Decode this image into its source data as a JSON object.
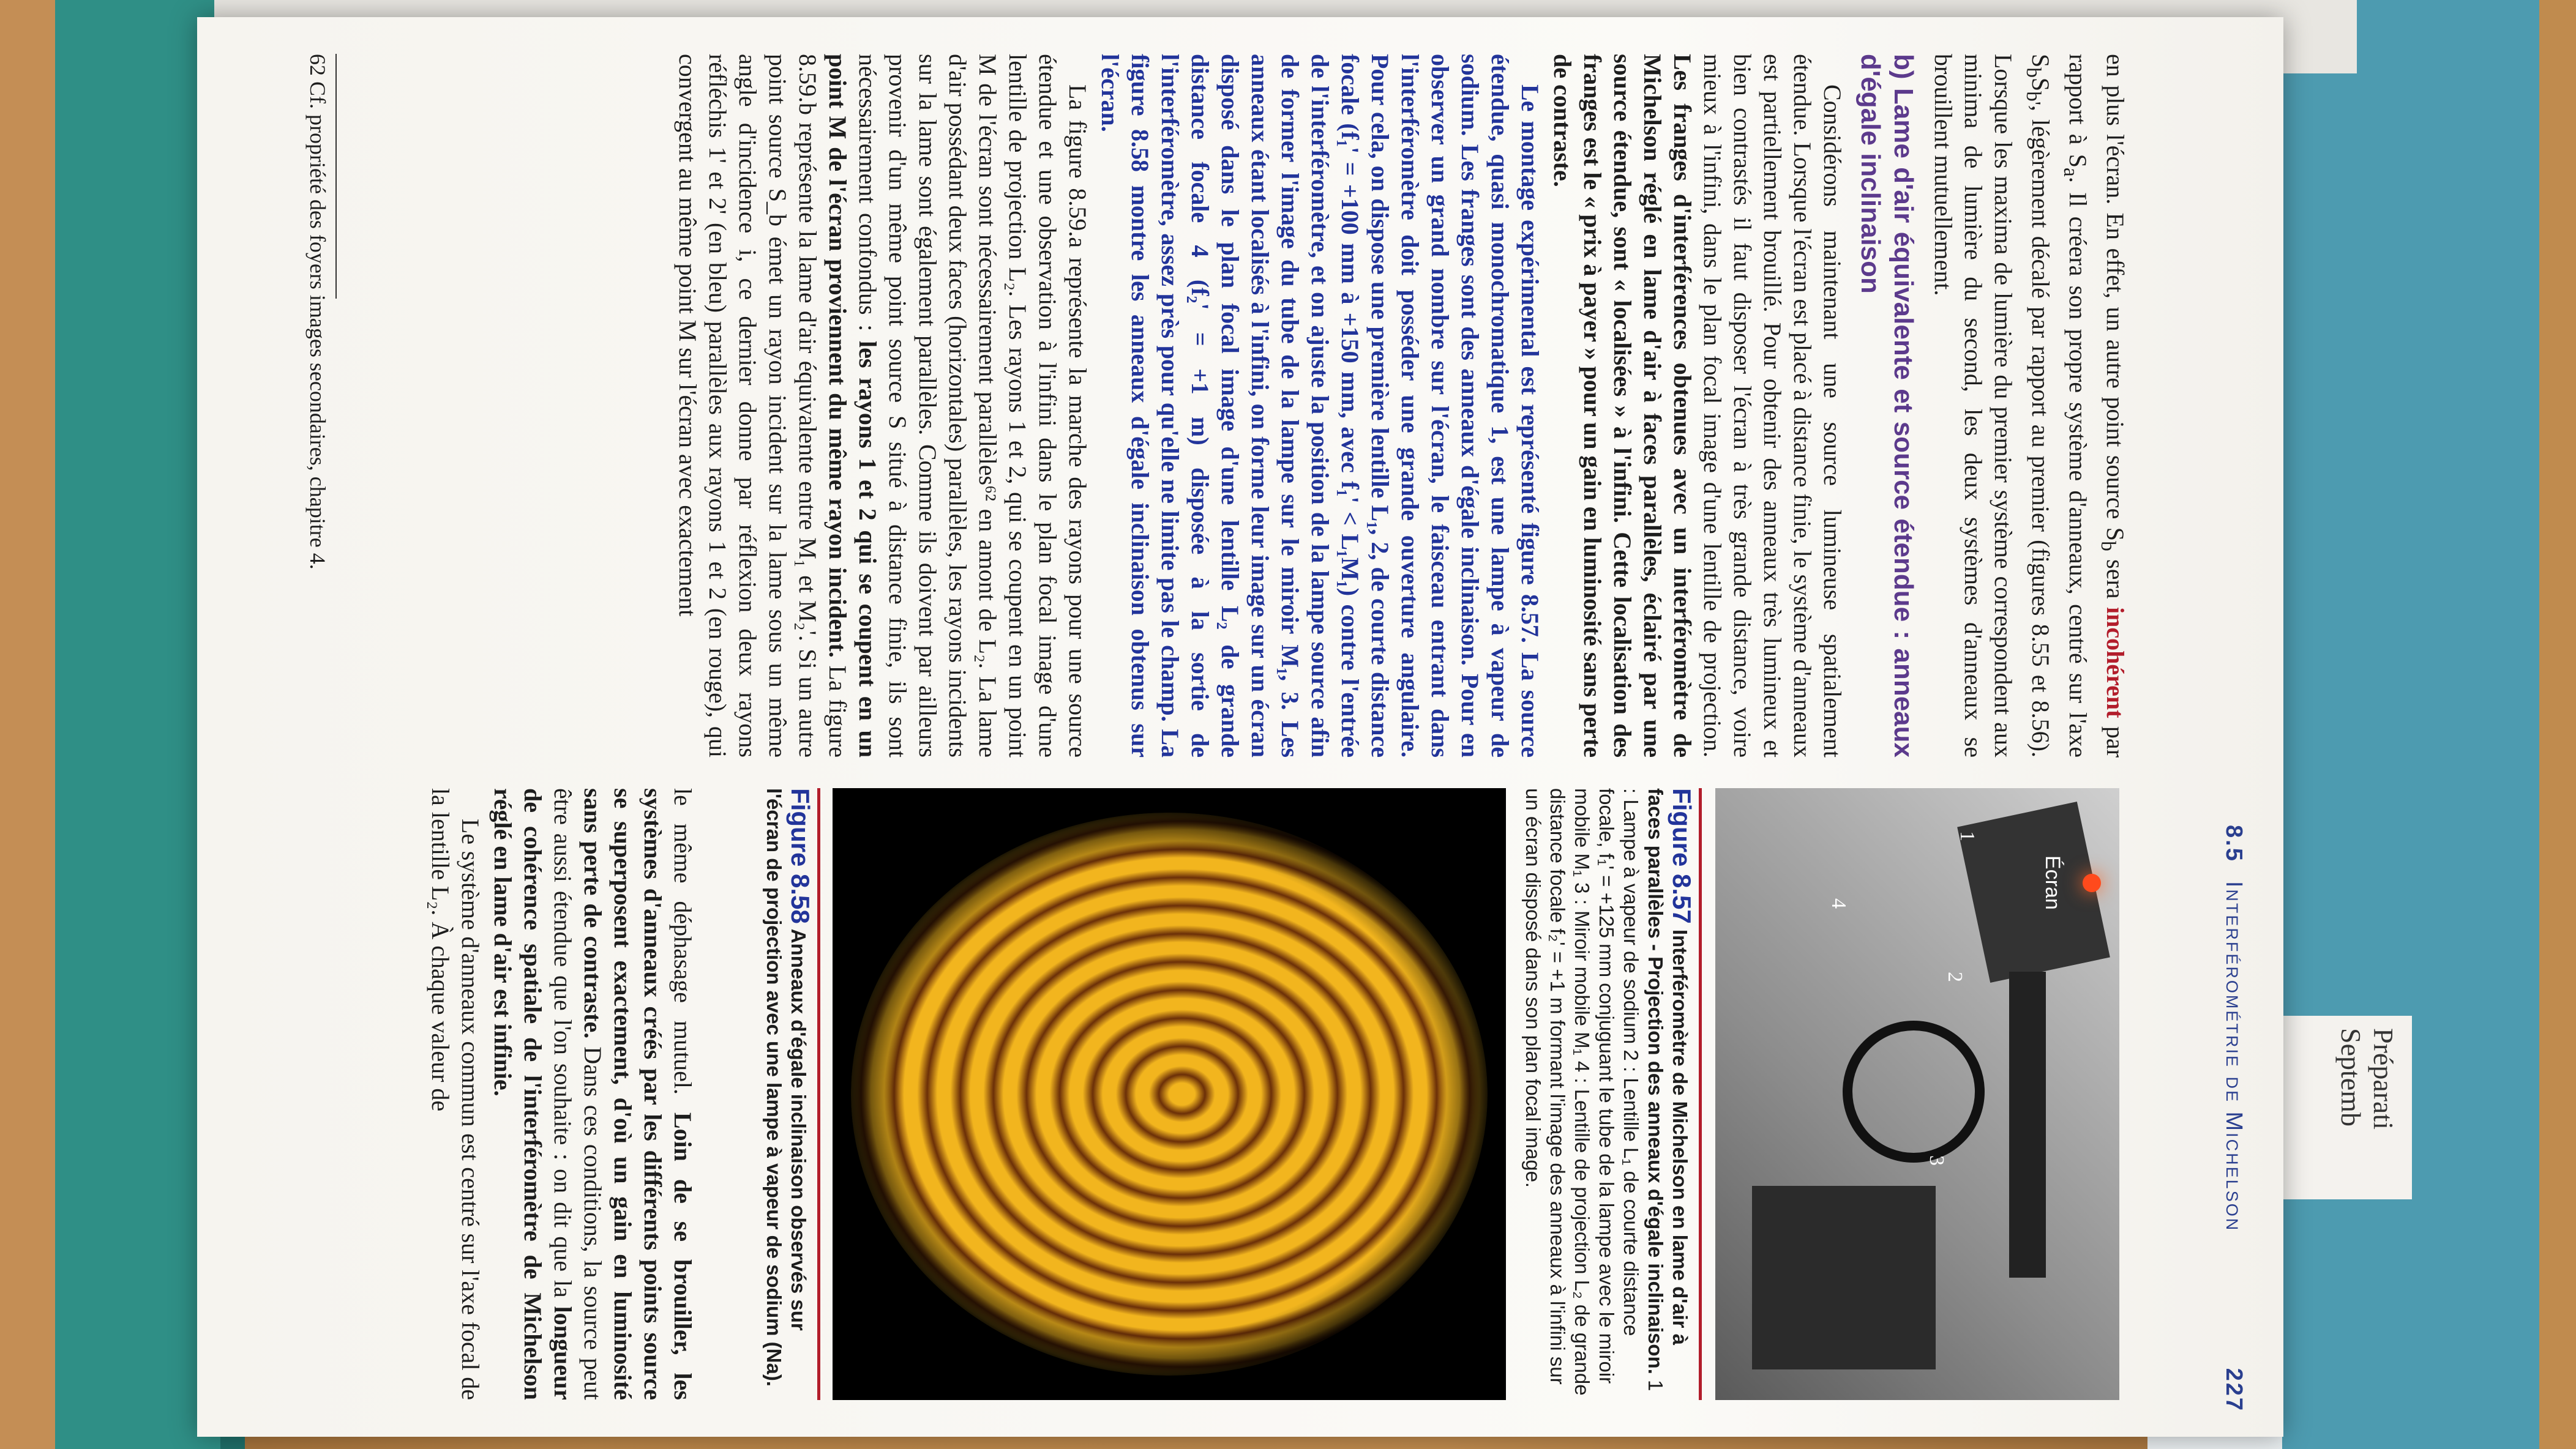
{
  "header": {
    "section": "8.5",
    "title": "Interférométrie de Michelson",
    "page": "227"
  },
  "left_column": {
    "intro": [
      "en plus l'écran. En effet, un autre point source S",
      "b",
      " sera ",
      "incohérent",
      " par rapport à S",
      "a",
      ". Il créera son propre système d'anneaux, centré sur l'axe S",
      "b",
      "S",
      "b'",
      ", légèrement décalé par rapport au premier (figures 8.55 et 8.56). Lorsque les maxima de lumière du premier système correspondent aux minima de lumière du second, les deux systèmes d'anneaux se brouillent mutuellement."
    ],
    "heading": "b) Lame d'air équivalente et source étendue : anneaux d'égale inclinaison",
    "paragraph_1": [
      "Considérons maintenant une source lumineuse spatialement étendue. Lorsque l'écran est placé à distance finie, le système d'anneaux est partiellement brouillé. Pour obtenir des anneaux très lumineux et bien contrastés il faut disposer l'écran à très grande distance, voire mieux à l'infini, dans le plan focal image d'une lentille de projection. ",
      "Les franges d'interférences obtenues avec un interféromètre de Michelson réglé en lame d'air à faces parallèles, éclairé par une source étendue, sont « localisées » à l'infini. Cette localisation des franges est le « prix à payer » pour un gain en luminosité sans perte de contraste."
    ],
    "paragraph_2": "Le montage expérimental est représenté figure 8.57. La source étendue, quasi monochromatique 1, est une lampe à vapeur de sodium. Les franges sont des anneaux d'égale inclinaison. Pour en observer un grand nombre sur l'écran, le faisceau entrant dans l'interféromètre doit posséder une grande ouverture angulaire. Pour cela, on dispose une première lentille L₁, 2, de courte distance focale (f₁' = +100 mm à +150 mm, avec f₁' < L₁M₁) contre l'entrée de l'interféromètre, et on ajuste la position de la lampe source afin de former l'image du tube de la lampe sur le miroir M₁, 3. Les anneaux étant localisés à l'infini, on forme leur image sur un écran disposé dans le plan focal image d'une lentille L₂ de grande distance focale 4 (f₂' = +1 m) disposée à la sortie de l'interféromètre, assez près pour qu'elle ne limite pas le champ. La figure 8.58 montre les anneaux d'égale inclinaison obtenus sur l'écran.",
    "paragraph_3": [
      "La figure 8.59.a représente la marche des rayons pour une source étendue et une observation à l'infini dans le plan focal image d'une lentille de projection L₂. Les rayons 1 et 2, qui se coupent en un point M de l'écran sont nécessairement parallèles⁶² en amont de L₂. La lame d'air possédant deux faces (horizontales) parallèles, les rayons incidents sur la lame sont également parallèles. Comme ils doivent par ailleurs provenir d'un même point source S situé à distance finie, ils sont nécessairement confondus : ",
      "les rayons 1 et 2 qui se coupent en un point M de l'écran proviennent du même rayon incident.",
      " La figure 8.59.b représente la lame d'air équivalente entre M₁ et M₂'. Si un autre point source S_b émet un rayon incident sur la lame sous un même angle d'incidence i, ce dernier donne par réflexion deux rayons réfléchis 1' et 2' (en bleu) parallèles aux rayons 1 et 2 (en rouge), qui convergent au même point M sur l'écran avec exactement"
    ],
    "footnote": "62 Cf. propriété des foyers images secondaires, chapitre 4."
  },
  "figure_57": {
    "photo_labels": [
      "Écran",
      "1",
      "2",
      "3",
      "4"
    ],
    "label": "Figure 8.57",
    "caption_title": " Interféromètre de Michelson en lame d'air à faces parallèles - Projection des anneaux d'égale inclinaison.",
    "caption_body": " 1 : Lampe à vapeur de sodium 2 : Lentille L₁ de courte distance focale, f₁' = +125 mm conjuguant le tube de la lampe avec le miroir mobile M₁ 3 : Miroir mobile M₁ 4 : Lentille de projection L₂ de grande distance focale f₂' = +1 m formant l'image des anneaux à l'infini sur un écran disposé dans son plan focal image."
  },
  "figure_58": {
    "label": "Figure 8.58",
    "caption": " Anneaux d'égale inclinaison observés sur l'écran de projection avec une lampe à vapeur de sodium (Na)."
  },
  "right_column": {
    "paragraph_1": [
      "le même déphasage mutuel. ",
      "Loin de se brouiller, les systèmes d'anneaux créés par les différents points source se superposent exactement, d'où un gain en luminosité sans perte de contraste.",
      " Dans ces conditions, la source peut être aussi étendue que l'on souhaite : on dit que la ",
      "longueur de cohérence spatiale de l'interféromètre de Michelson réglé en lame d'air est infinie."
    ],
    "paragraph_2": "Le système d'anneaux commun est centré sur l'axe focal de la lentille L₂. À chaque valeur de"
  },
  "sticky_note": [
    "Préparati",
    "Septemb"
  ]
}
